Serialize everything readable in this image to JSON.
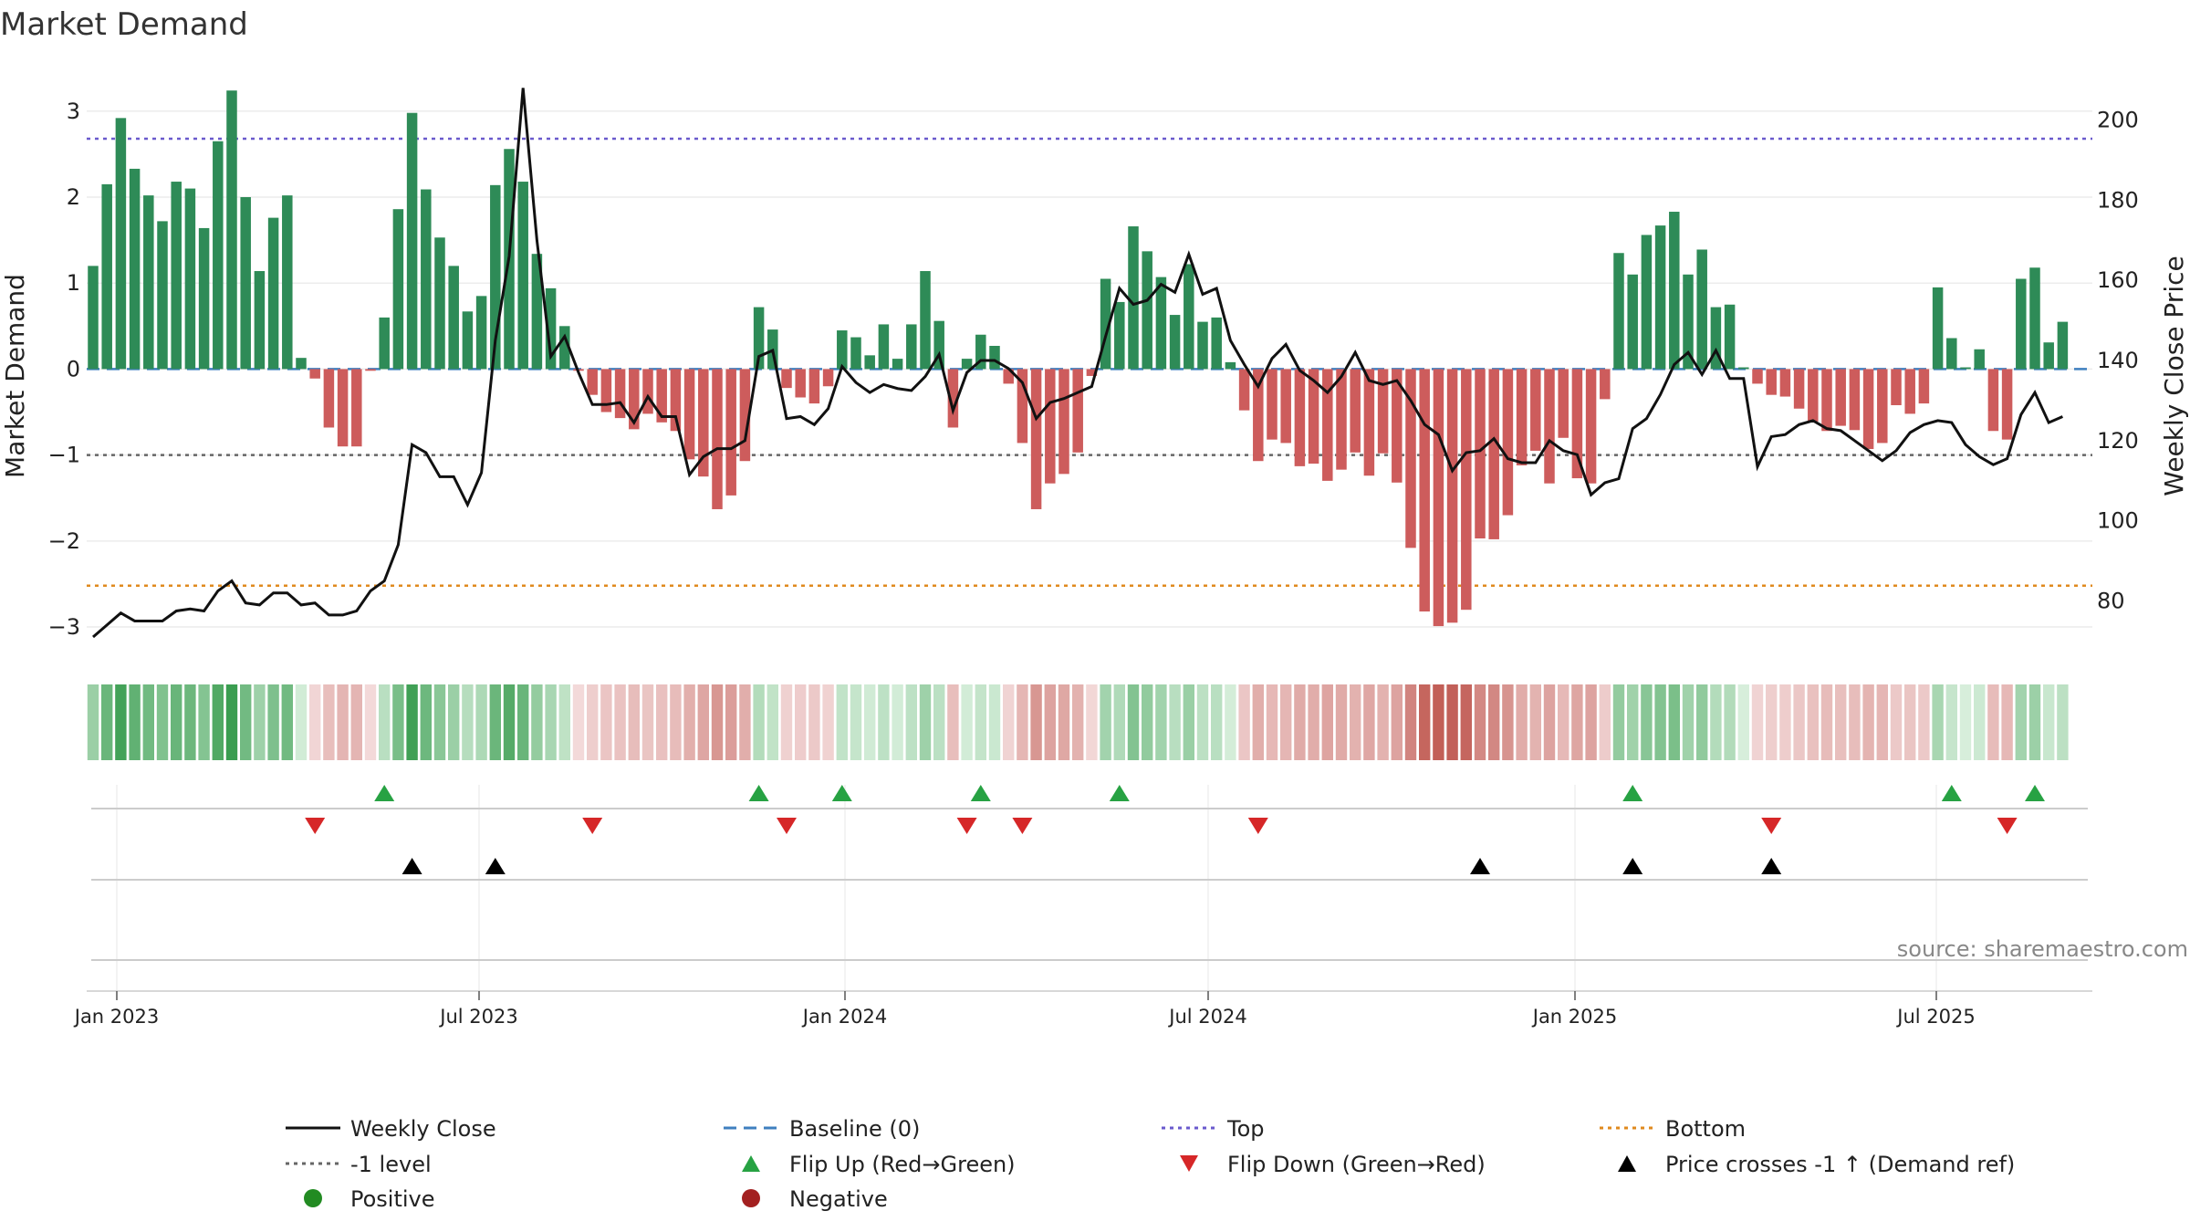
{
  "chart_data": {
    "type": "bar",
    "title": "Market Demand",
    "ylabel": "Market Demand",
    "y2label": "Weekly Close Price",
    "ylim": [
      -3.35,
      3.55
    ],
    "y2lim": [
      66,
      214
    ],
    "yticks": [
      "3",
      "2",
      "1",
      "0",
      "−1",
      "−2",
      "−3"
    ],
    "y2ticks": [
      "200",
      "180",
      "160",
      "140",
      "120",
      "100",
      "80"
    ],
    "xticks": [
      "Jan 2023",
      "Jul 2023",
      "Jan 2024",
      "Jul 2024",
      "Jan 2025",
      "Jul 2025"
    ],
    "reference_lines": {
      "top": 2.68,
      "bottom": -2.52,
      "minus_one": -1,
      "baseline": 0
    },
    "demand": [
      1.2,
      2.15,
      2.92,
      2.33,
      2.02,
      1.72,
      2.18,
      2.1,
      1.64,
      2.65,
      3.24,
      2.0,
      1.14,
      1.76,
      2.02,
      0.13,
      -0.11,
      -0.68,
      -0.9,
      -0.9,
      -0.02,
      0.6,
      1.86,
      2.98,
      2.09,
      1.53,
      1.2,
      0.67,
      0.85,
      2.14,
      2.56,
      2.18,
      1.34,
      0.94,
      0.5,
      -0.02,
      -0.3,
      -0.5,
      -0.57,
      -0.7,
      -0.52,
      -0.62,
      -0.72,
      -1.05,
      -1.25,
      -1.63,
      -1.47,
      -1.07,
      0.72,
      0.46,
      -0.22,
      -0.33,
      -0.4,
      -0.2,
      0.45,
      0.37,
      0.16,
      0.52,
      0.12,
      0.52,
      1.14,
      0.56,
      -0.68,
      0.12,
      0.4,
      0.27,
      -0.17,
      -0.86,
      -1.63,
      -1.33,
      -1.22,
      -0.97,
      -0.08,
      1.05,
      0.78,
      1.66,
      1.37,
      1.07,
      0.63,
      1.22,
      0.55,
      0.6,
      0.08,
      -0.48,
      -1.07,
      -0.82,
      -0.86,
      -1.13,
      -1.1,
      -1.3,
      -1.17,
      -0.97,
      -1.24,
      -0.98,
      -1.32,
      -2.08,
      -2.82,
      -2.99,
      -2.95,
      -2.8,
      -1.97,
      -1.98,
      -1.7,
      -1.12,
      -0.95,
      -1.33,
      -0.8,
      -1.27,
      -1.33,
      -0.35,
      1.35,
      1.1,
      1.56,
      1.67,
      1.83,
      1.1,
      1.39,
      0.72,
      0.75,
      0.02,
      -0.17,
      -0.3,
      -0.32,
      -0.46,
      -0.61,
      -0.72,
      -0.66,
      -0.71,
      -0.93,
      -0.86,
      -0.42,
      -0.52,
      -0.4,
      0.95,
      0.36,
      0.02,
      0.23,
      -0.72,
      -0.82,
      1.05,
      1.18,
      0.31,
      0.55
    ],
    "price": [
      71.0,
      74.0,
      77.0,
      75.0,
      75.0,
      75.0,
      77.5,
      78.0,
      77.5,
      82.5,
      85.0,
      79.5,
      79.0,
      82.0,
      82.0,
      79.0,
      79.5,
      76.5,
      76.5,
      77.5,
      82.5,
      85.0,
      94.0,
      119.0,
      117.0,
      111.0,
      111.0,
      104.0,
      112.0,
      145.0,
      166.0,
      208.0,
      170.0,
      141.0,
      146.0,
      137.0,
      129.0,
      129.0,
      129.5,
      124.5,
      131.0,
      126.0,
      126.0,
      111.5,
      116.0,
      118.0,
      118.0,
      120.0,
      141.0,
      142.5,
      125.5,
      126.0,
      124.0,
      128.0,
      138.5,
      134.5,
      132.0,
      134.0,
      133.0,
      132.5,
      136.0,
      141.5,
      127.5,
      137.0,
      140.0,
      140.0,
      138.0,
      134.5,
      125.5,
      129.5,
      130.5,
      132.0,
      133.5,
      146.0,
      158.0,
      154.0,
      155.0,
      159.0,
      157.0,
      166.5,
      156.5,
      158.0,
      145.0,
      139.0,
      133.5,
      140.5,
      144.0,
      137.5,
      135.0,
      132.0,
      136.0,
      142.0,
      135.0,
      134.0,
      135.0,
      130.0,
      124.0,
      121.5,
      112.5,
      117.0,
      117.5,
      120.5,
      115.5,
      114.5,
      114.5,
      120.0,
      117.5,
      116.5,
      106.5,
      109.5,
      110.5,
      123.0,
      125.5,
      131.5,
      139.0,
      142.0,
      136.5,
      142.5,
      135.5,
      135.5,
      113.5,
      121.0,
      121.5,
      124.0,
      125.0,
      123.0,
      122.5,
      120.0,
      117.5,
      115.0,
      117.5,
      122.0,
      124.0,
      125.0,
      124.5,
      119.0,
      116.0,
      114.0,
      115.5,
      126.5,
      132.0,
      124.5,
      126.0
    ],
    "heat_strip": "demand intensity per week (green positive, red negative)",
    "signals": {
      "flip_up_weeks": [
        21,
        48,
        54,
        64,
        74,
        111,
        134,
        140
      ],
      "flip_down_weeks": [
        16,
        36,
        50,
        63,
        67,
        84,
        121,
        138
      ],
      "price_cross_weeks": [
        23,
        29,
        100,
        111,
        121
      ]
    },
    "legend": [
      {
        "key": "close",
        "label": "Weekly Close"
      },
      {
        "key": "baseline",
        "label": "Baseline (0)"
      },
      {
        "key": "top",
        "label": "Top"
      },
      {
        "key": "bottom",
        "label": "Bottom"
      },
      {
        "key": "minus1",
        "label": "-1 level"
      },
      {
        "key": "flipup",
        "label": "Flip Up (Red→Green)"
      },
      {
        "key": "flipdown",
        "label": "Flip Down (Green→Red)"
      },
      {
        "key": "cross",
        "label": "Price crosses -1 ↑ (Demand ref)"
      },
      {
        "key": "positive",
        "label": "Positive"
      },
      {
        "key": "negative",
        "label": "Negative"
      }
    ],
    "source": "source: sharemaestro.com",
    "colors": {
      "positive": "#2e8b57",
      "negative": "#cd5c5c",
      "close": "#111111",
      "top": "#6a5acd",
      "bottom": "#e08a1e",
      "minus1": "#666666",
      "baseline": "#3f7fbf",
      "flipup": "#27a243",
      "flipdown": "#d62728",
      "cross": "#000000",
      "positive_dot": "#228b22",
      "negative_dot": "#a32020"
    }
  }
}
